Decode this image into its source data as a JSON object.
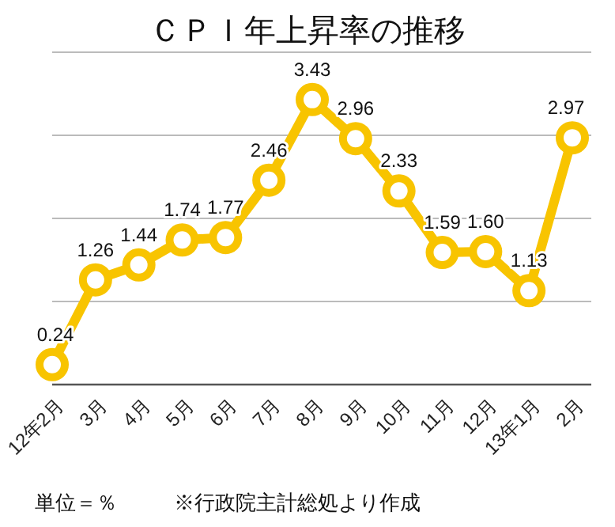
{
  "chart_data": {
    "type": "line",
    "title": "ＣＰＩ年上昇率の推移",
    "categories": [
      "12年2月",
      "3月",
      "4月",
      "5月",
      "6月",
      "7月",
      "8月",
      "9月",
      "10月",
      "11月",
      "12月",
      "13年1月",
      "2月"
    ],
    "series": [
      {
        "color": "#f8c400",
        "values": [
          0.24,
          1.26,
          1.44,
          1.74,
          1.77,
          2.46,
          3.43,
          2.96,
          2.33,
          1.59,
          1.6,
          1.13,
          2.97
        ],
        "value_labels": [
          "0.24",
          "1.26",
          "1.44",
          "1.74",
          "1.77",
          "2.46",
          "3.43",
          "2.96",
          "2.33",
          "1.59",
          "1.60",
          "1.13",
          "2.97"
        ]
      }
    ],
    "ylim": [
      0,
      4
    ],
    "yticks": [
      {
        "value": 0,
        "label": null
      },
      {
        "value": 1,
        "label": null
      },
      {
        "value": 2,
        "label": null
      },
      {
        "value": 3,
        "label": null
      },
      {
        "value": 4,
        "label": null
      }
    ],
    "tick_labels": "x",
    "grid": "y",
    "marker": "circle",
    "line_style": "solid",
    "annotations": [
      "単位＝％",
      "※行政院主計総処より作成"
    ]
  }
}
